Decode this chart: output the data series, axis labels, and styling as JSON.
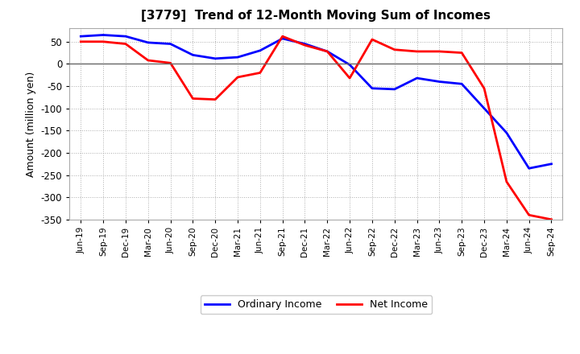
{
  "title": "[3779]  Trend of 12-Month Moving Sum of Incomes",
  "ylabel": "Amount (million yen)",
  "x_labels": [
    "Jun-19",
    "Sep-19",
    "Dec-19",
    "Mar-20",
    "Jun-20",
    "Sep-20",
    "Dec-20",
    "Mar-21",
    "Jun-21",
    "Sep-21",
    "Dec-21",
    "Mar-22",
    "Jun-22",
    "Sep-22",
    "Dec-22",
    "Mar-23",
    "Jun-23",
    "Sep-23",
    "Dec-23",
    "Mar-24",
    "Jun-24",
    "Sep-24"
  ],
  "ordinary_income": [
    62,
    65,
    62,
    48,
    45,
    20,
    12,
    15,
    30,
    57,
    45,
    28,
    -2,
    -55,
    -57,
    -32,
    -40,
    -45,
    -100,
    -155,
    -235,
    -225
  ],
  "net_income": [
    50,
    50,
    45,
    8,
    2,
    -78,
    -80,
    -30,
    -20,
    62,
    42,
    28,
    -32,
    55,
    32,
    28,
    28,
    25,
    -55,
    -265,
    -340,
    -350
  ],
  "ordinary_color": "#0000ff",
  "net_color": "#ff0000",
  "ylim": [
    -350,
    80
  ],
  "yticks": [
    50,
    0,
    -50,
    -100,
    -150,
    -200,
    -250,
    -300,
    -350
  ],
  "background_color": "#ffffff",
  "grid_color": "#999999",
  "line_width": 2.0,
  "legend_labels": [
    "Ordinary Income",
    "Net Income"
  ]
}
